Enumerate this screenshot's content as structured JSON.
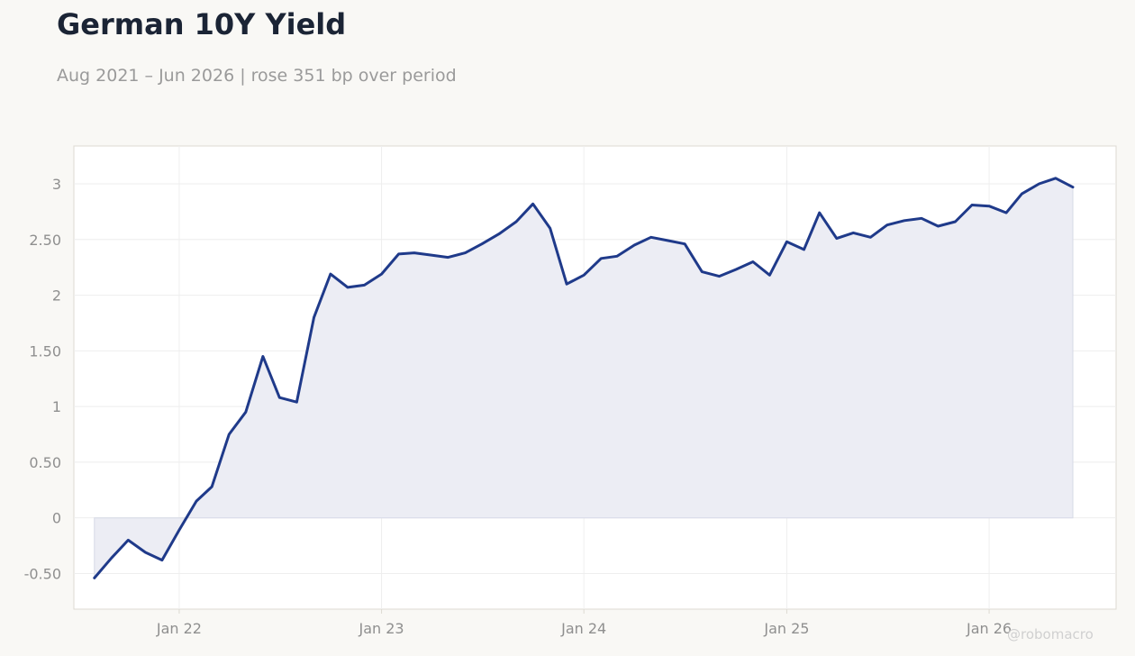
{
  "title": "German 10Y Yield",
  "subtitle": "Aug 2021 – Jun 2026 | rose 351 bp over period",
  "watermark": "@robomacro",
  "colors": {
    "line": "#1f3a8a",
    "fill": "#ecedf4",
    "background": "#f9f8f5",
    "plot_background": "#ffffff",
    "grid": "#eeeeee",
    "frame": "#dddad2"
  },
  "chart_data": {
    "type": "area",
    "title": "German 10Y Yield",
    "xlabel": "",
    "ylabel": "",
    "ylim": [
      -0.82,
      3.34
    ],
    "xlim": [
      "2021-06-25",
      "2026-08-18"
    ],
    "y_ticks": [
      {
        "value": -0.5,
        "label": "-0.50"
      },
      {
        "value": 0,
        "label": "0"
      },
      {
        "value": 0.5,
        "label": "0.50"
      },
      {
        "value": 1,
        "label": "1"
      },
      {
        "value": 1.5,
        "label": "1.50"
      },
      {
        "value": 2,
        "label": "2"
      },
      {
        "value": 2.5,
        "label": "2.50"
      },
      {
        "value": 3,
        "label": "3"
      }
    ],
    "x_ticks": [
      {
        "value": "2022-01-01",
        "label": "Jan 22"
      },
      {
        "value": "2023-01-01",
        "label": "Jan 23"
      },
      {
        "value": "2024-01-01",
        "label": "Jan 24"
      },
      {
        "value": "2025-01-01",
        "label": "Jan 25"
      },
      {
        "value": "2026-01-01",
        "label": "Jan 26"
      }
    ],
    "grid": true,
    "legend": "none",
    "series": [
      {
        "x": [
          "2021-08-01",
          "2021-09-01",
          "2021-10-01",
          "2021-11-01",
          "2021-12-01",
          "2022-01-01",
          "2022-02-01",
          "2022-03-01",
          "2022-04-01",
          "2022-05-01",
          "2022-06-01",
          "2022-07-01",
          "2022-08-01",
          "2022-09-01",
          "2022-10-01",
          "2022-11-01",
          "2022-12-01",
          "2023-01-01",
          "2023-02-01",
          "2023-03-01",
          "2023-04-01",
          "2023-05-01",
          "2023-06-01",
          "2023-07-01",
          "2023-08-01",
          "2023-09-01",
          "2023-10-01",
          "2023-11-01",
          "2023-12-01",
          "2024-01-01",
          "2024-02-01",
          "2024-03-01",
          "2024-04-01",
          "2024-05-01",
          "2024-06-01",
          "2024-07-01",
          "2024-08-01",
          "2024-09-01",
          "2024-10-01",
          "2024-11-01",
          "2024-12-01",
          "2025-01-01",
          "2025-02-01",
          "2025-03-01",
          "2025-04-01",
          "2025-05-01",
          "2025-06-01",
          "2025-07-01",
          "2025-08-01",
          "2025-09-01",
          "2025-10-01",
          "2025-11-01",
          "2025-12-01",
          "2026-01-01",
          "2026-02-01",
          "2026-03-01",
          "2026-04-01",
          "2026-05-01",
          "2026-06-01"
        ],
        "values": [
          -0.54,
          -0.36,
          -0.2,
          -0.31,
          -0.38,
          -0.11,
          0.15,
          0.28,
          0.75,
          0.95,
          1.45,
          1.08,
          1.04,
          1.8,
          2.19,
          2.07,
          2.09,
          2.19,
          2.37,
          2.38,
          2.36,
          2.34,
          2.38,
          2.46,
          2.55,
          2.66,
          2.82,
          2.6,
          2.1,
          2.18,
          2.33,
          2.35,
          2.45,
          2.52,
          2.49,
          2.46,
          2.21,
          2.17,
          2.23,
          2.3,
          2.18,
          2.48,
          2.41,
          2.74,
          2.51,
          2.56,
          2.52,
          2.63,
          2.67,
          2.69,
          2.62,
          2.66,
          2.81,
          2.8,
          2.74,
          2.91,
          3.0,
          3.05,
          2.97
        ]
      }
    ]
  }
}
